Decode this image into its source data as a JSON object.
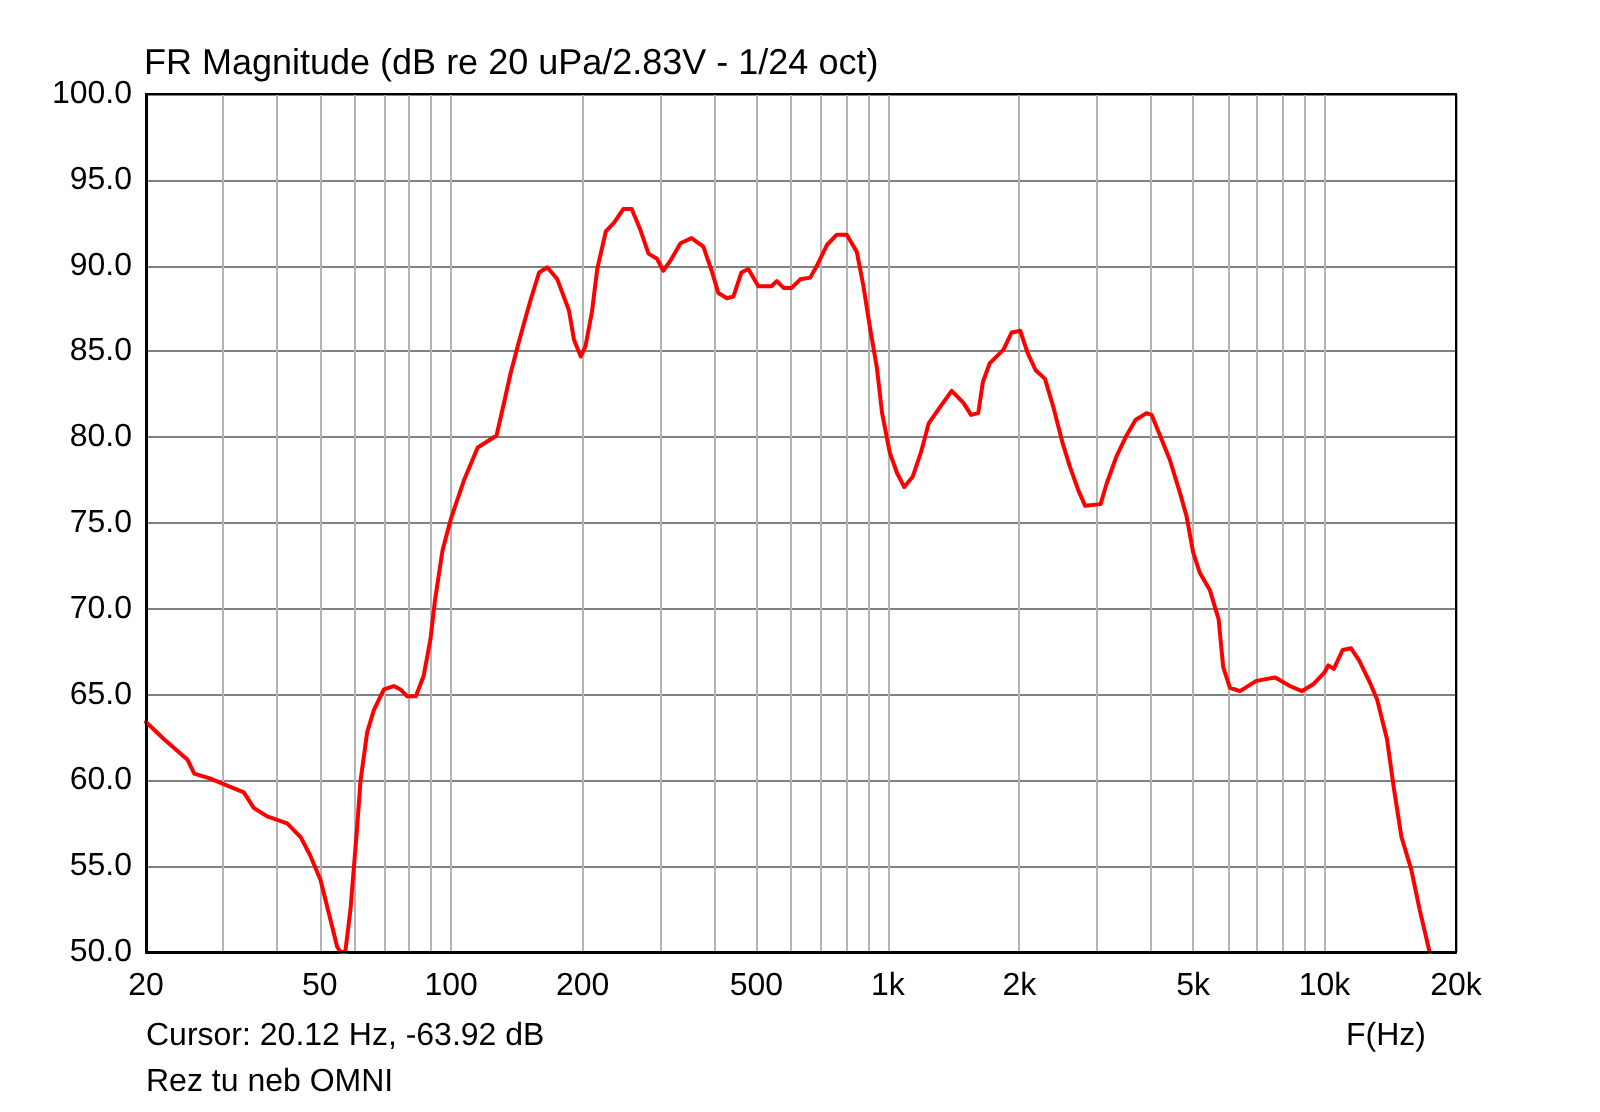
{
  "chart_data": {
    "type": "line",
    "title": "FR Magnitude (dB re 20 uPa/2.83V - 1/24 oct)",
    "xlabel": "F(Hz)",
    "annotations": [
      "Cursor: 20.12 Hz, -63.92 dB",
      "Rez tu neb OMNI"
    ],
    "log": "x",
    "grid": true,
    "x": [
      20,
      22,
      24.9,
      25.8,
      28.1,
      30.7,
      33.5,
      35.3,
      37.9,
      42.1,
      45.2,
      47.6,
      50.2,
      52.4,
      54.8,
      55.8,
      57.2,
      58.8,
      60.9,
      62,
      64.2,
      66.5,
      70.1,
      73.9,
      76.5,
      79.3,
      83,
      86.5,
      89.6,
      91.8,
      95.5,
      100,
      107,
      115,
      127,
      131,
      137,
      142,
      147,
      152,
      159,
      166,
      175,
      186,
      191,
      198,
      203,
      210,
      216,
      226,
      236,
      248,
      259,
      271,
      283,
      296,
      306,
      318,
      335,
      355,
      378,
      396,
      409,
      428,
      443,
      462,
      479,
      505,
      541,
      557,
      577,
      602,
      630,
      664,
      688,
      725,
      764,
      805,
      849,
      879,
      911,
      943,
      970,
      1010,
      1050,
      1090,
      1140,
      1190,
      1240,
      1320,
      1400,
      1490,
      1550,
      1610,
      1650,
      1710,
      1840,
      1920,
      2010,
      2090,
      2180,
      2290,
      2390,
      2510,
      2610,
      2730,
      2830,
      3070,
      3170,
      3340,
      3520,
      3690,
      3910,
      4020,
      4200,
      4420,
      4660,
      4830,
      5000,
      5180,
      5460,
      5720,
      5860,
      6070,
      6400,
      6980,
      7710,
      8330,
      8870,
      9420,
      10000,
      10200,
      10500,
      11000,
      11500,
      12000,
      12700,
      13200,
      13900,
      14400,
      15000,
      15800,
      16500,
      17400
    ],
    "series": [
      {
        "color": "#ff0000",
        "values": [
          63.4,
          62.4,
          61.2,
          60.4,
          60.1,
          59.7,
          59.3,
          58.4,
          57.9,
          57.5,
          56.7,
          55.6,
          54.2,
          52.3,
          50.3,
          50.0,
          50.0,
          52.5,
          57.3,
          60.0,
          62.8,
          64.1,
          65.3,
          65.5,
          65.3,
          64.9,
          64.9,
          66.1,
          68.2,
          70.5,
          73.4,
          75.3,
          77.5,
          79.4,
          80.1,
          81.6,
          83.8,
          85.3,
          86.7,
          88.0,
          89.6,
          89.9,
          89.2,
          87.4,
          85.7,
          84.7,
          85.3,
          87.3,
          89.8,
          92.0,
          92.5,
          93.3,
          93.3,
          92.1,
          90.7,
          90.4,
          89.7,
          90.3,
          91.3,
          91.6,
          91.1,
          89.6,
          88.4,
          88.1,
          88.2,
          89.6,
          89.8,
          88.8,
          88.8,
          89.1,
          88.7,
          88.7,
          89.2,
          89.3,
          90.0,
          91.2,
          91.8,
          91.8,
          90.8,
          88.8,
          86.3,
          84.1,
          81.4,
          79.1,
          77.9,
          77.1,
          77.7,
          79.1,
          80.8,
          81.8,
          82.7,
          82.0,
          81.3,
          81.4,
          83.2,
          84.3,
          85.1,
          86.1,
          86.2,
          84.9,
          83.9,
          83.4,
          81.8,
          79.7,
          78.3,
          76.9,
          76.0,
          76.1,
          77.3,
          78.9,
          80.1,
          81.0,
          81.4,
          81.3,
          80.1,
          78.7,
          76.8,
          75.4,
          73.3,
          72.1,
          71.1,
          69.4,
          66.6,
          65.4,
          65.2,
          65.8,
          66.0,
          65.5,
          65.2,
          65.6,
          66.3,
          66.7,
          66.5,
          67.6,
          67.7,
          67.0,
          65.7,
          64.7,
          62.4,
          59.6,
          56.7,
          54.8,
          52.5,
          50.0
        ]
      }
    ],
    "xlim": [
      20,
      20000
    ],
    "ylim": [
      50,
      100
    ],
    "xticks": [
      20,
      {
        "value": 30,
        "label": null
      },
      {
        "value": 40,
        "label": null
      },
      50,
      {
        "value": 60,
        "label": null
      },
      {
        "value": 70,
        "label": null
      },
      {
        "value": 80,
        "label": null
      },
      {
        "value": 90,
        "label": null
      },
      100,
      200,
      {
        "value": 300,
        "label": null
      },
      {
        "value": 400,
        "label": null
      },
      500,
      {
        "value": 600,
        "label": null
      },
      {
        "value": 700,
        "label": null
      },
      {
        "value": 800,
        "label": null
      },
      {
        "value": 900,
        "label": null
      },
      {
        "value": 1000,
        "label": "1k"
      },
      {
        "value": 2000,
        "label": "2k"
      },
      {
        "value": 3000,
        "label": null
      },
      {
        "value": 4000,
        "label": null
      },
      {
        "value": 5000,
        "label": "5k"
      },
      {
        "value": 6000,
        "label": null
      },
      {
        "value": 7000,
        "label": null
      },
      {
        "value": 8000,
        "label": null
      },
      {
        "value": 9000,
        "label": null
      },
      {
        "value": 10000,
        "label": "10k"
      },
      {
        "value": 20000,
        "label": "20k"
      }
    ],
    "yticks": [
      {
        "value": 50,
        "label": "50.0"
      },
      {
        "value": 55,
        "label": "55.0"
      },
      {
        "value": 60,
        "label": "60.0"
      },
      {
        "value": 65,
        "label": "65.0"
      },
      {
        "value": 70,
        "label": "70.0"
      },
      {
        "value": 75,
        "label": "75.0"
      },
      {
        "value": 80,
        "label": "80.0"
      },
      {
        "value": 85,
        "label": "85.0"
      },
      {
        "value": 90,
        "label": "90.0"
      },
      {
        "value": 95,
        "label": "95.0"
      },
      {
        "value": 100,
        "label": "100.0"
      }
    ]
  }
}
